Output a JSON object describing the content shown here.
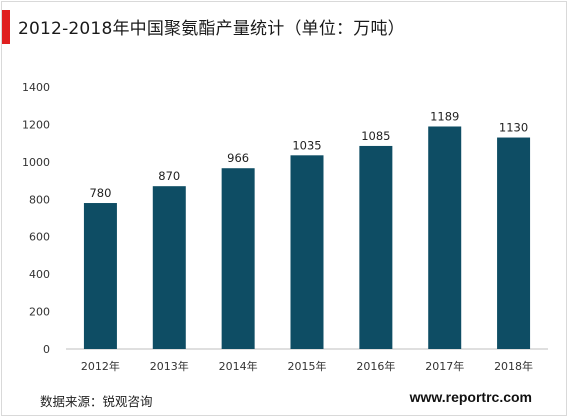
{
  "header": {
    "title": "2012-2018年中国聚氨酯产量统计（单位：万吨）"
  },
  "footer": {
    "source": "数据来源：锐观咨询",
    "site": "www.reportrc.com"
  },
  "colors": {
    "bar": "#0e4d64",
    "accent": "#e02020"
  },
  "chart_data": {
    "type": "bar",
    "title": "2012-2018年中国聚氨酯产量统计（单位：万吨）",
    "categories": [
      "2012年",
      "2013年",
      "2014年",
      "2015年",
      "2016年",
      "2017年",
      "2018年"
    ],
    "values": [
      780,
      870,
      966,
      1035,
      1085,
      1189,
      1130
    ],
    "data_labels": [
      "780",
      "870",
      "966",
      "1035",
      "1085",
      "1189",
      "1130"
    ],
    "ylim": [
      0,
      1400
    ],
    "yticks": [
      0,
      200,
      400,
      600,
      800,
      1000,
      1200,
      1400
    ],
    "ytick_labels": [
      "0",
      "200",
      "400",
      "600",
      "800",
      "1000",
      "1200",
      "1400"
    ],
    "grid": false,
    "legend": "none"
  }
}
